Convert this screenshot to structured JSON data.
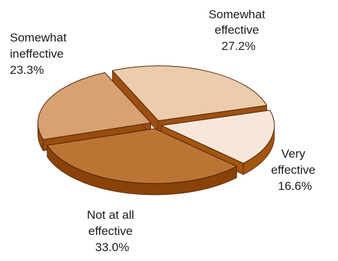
{
  "chart_data": {
    "type": "pie",
    "title": "",
    "slices": [
      {
        "label_lines": [
          "Somewhat",
          "effective"
        ],
        "value": 27.2,
        "value_label": "27.2%",
        "color": "#ecccab",
        "side_color": "#9e4f10"
      },
      {
        "label_lines": [
          "Very",
          "effective"
        ],
        "value": 16.6,
        "value_label": "16.6%",
        "color": "#f7e7da",
        "side_color": "#a45510"
      },
      {
        "label_lines": [
          "Not at all",
          "effective"
        ],
        "value": 33.0,
        "value_label": "33.0%",
        "color": "#bc7435",
        "side_color": "#8a4208"
      },
      {
        "label_lines": [
          "Somewhat",
          "ineffective"
        ],
        "value": 23.3,
        "value_label": "23.3%",
        "color": "#d7a172",
        "side_color": "#9a4c0c"
      }
    ],
    "legend": "none",
    "exploded": true,
    "three_d": true
  }
}
